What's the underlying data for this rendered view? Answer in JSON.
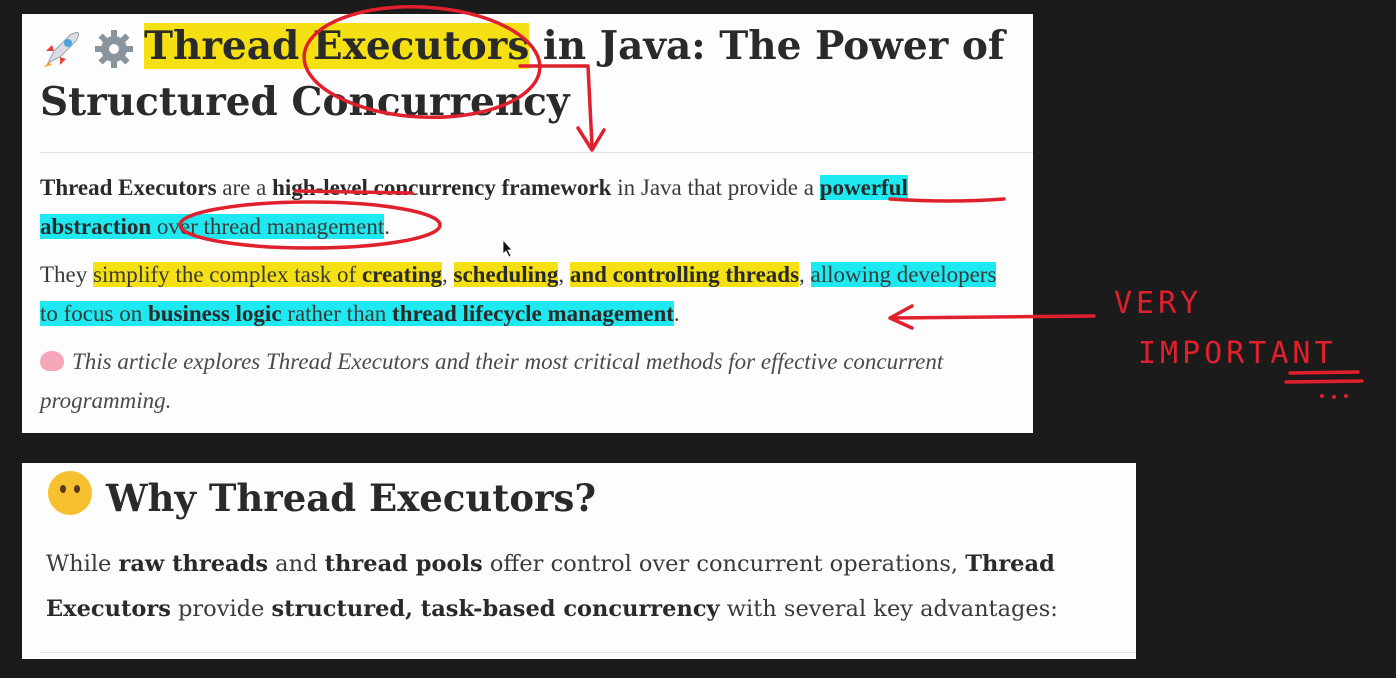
{
  "article": {
    "title": {
      "t1": "Thread",
      "t2": " ",
      "t3": "Executors",
      "t4": " in Java: The Power of Structured Concurrency"
    },
    "intro": {
      "s1": "Thread Executors",
      "s2": " are a ",
      "s3": "high-level concurrency framework",
      "s4": " in Java that provide a ",
      "s5": "powerful abstraction",
      "s6": " over thread management",
      "s7": "."
    },
    "second": {
      "s1": "They ",
      "s2": "simplify the complex task",
      "s3": " of ",
      "s4": "creating",
      "s5": ", ",
      "s6": "scheduling",
      "s7": ", ",
      "s8": "and controlling threads",
      "s9": ", ",
      "s10": "allowing developers to focus on ",
      "s11": "business logic",
      "s12": " rather than ",
      "s13": "thread lifecycle management",
      "s14": "."
    },
    "note": {
      "text": "This article explores Thread Executors and their most critical methods for effective concurrent programming."
    }
  },
  "section2": {
    "heading": "Why Thread Executors?",
    "body": {
      "s1": "While ",
      "s2": "raw threads",
      "s3": " and ",
      "s4": "thread pools",
      "s5": " offer control over concurrent operations, ",
      "s6": "Thread Executors",
      "s7": " provide ",
      "s8": "structured, task-based concurrency",
      "s9": " with several key advantages:"
    }
  },
  "annotations": {
    "very": "VERY",
    "important": "IMPORTANT"
  },
  "colors": {
    "highlight_yellow": "#f5e014",
    "highlight_cyan": "#1ee8f0",
    "ink_red": "#e0202c",
    "background": "#1b1b1b"
  },
  "icons": [
    "rocket-icon",
    "gear-icon",
    "brain-icon",
    "thinking-face-icon"
  ]
}
